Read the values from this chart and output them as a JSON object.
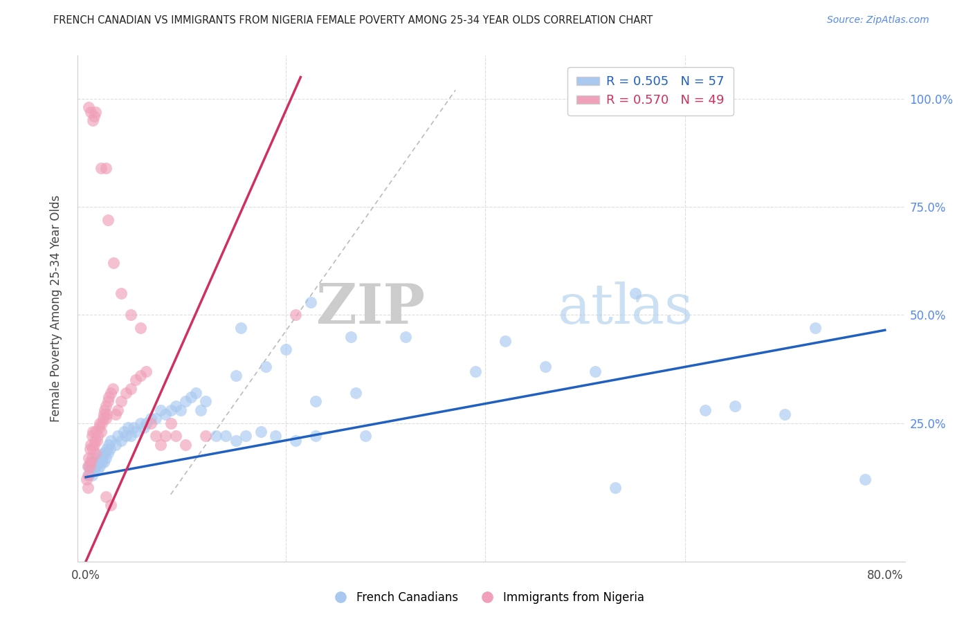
{
  "title": "FRENCH CANADIAN VS IMMIGRANTS FROM NIGERIA FEMALE POVERTY AMONG 25-34 YEAR OLDS CORRELATION CHART",
  "source": "Source: ZipAtlas.com",
  "ylabel": "Female Poverty Among 25-34 Year Olds",
  "xlim": [
    -0.008,
    0.82
  ],
  "ylim": [
    -0.07,
    1.1
  ],
  "xtick_positions": [
    0.0,
    0.2,
    0.4,
    0.6,
    0.8
  ],
  "xtick_labels": [
    "0.0%",
    "",
    "",
    "",
    "80.0%"
  ],
  "ytick_positions": [
    0.0,
    0.25,
    0.5,
    0.75,
    1.0
  ],
  "ytick_labels_right": [
    "",
    "25.0%",
    "50.0%",
    "75.0%",
    "100.0%"
  ],
  "blue_color": "#A8C8F0",
  "pink_color": "#F0A0B8",
  "blue_line_color": "#2060C0",
  "pink_line_color": "#D03060",
  "gray_line_color": "#BBBBBB",
  "legend_blue_R": "R = 0.505",
  "legend_blue_N": "N = 57",
  "legend_pink_R": "R = 0.570",
  "legend_pink_N": "N = 49",
  "blue_line_x": [
    0.0,
    0.8
  ],
  "blue_line_y": [
    0.125,
    0.465
  ],
  "pink_line_x": [
    0.0,
    0.215
  ],
  "pink_line_y": [
    -0.07,
    1.05
  ],
  "gray_line_x": [
    0.085,
    0.37
  ],
  "gray_line_y": [
    0.085,
    1.02
  ],
  "blue_x": [
    0.002,
    0.003,
    0.004,
    0.005,
    0.006,
    0.007,
    0.008,
    0.009,
    0.01,
    0.011,
    0.012,
    0.013,
    0.014,
    0.015,
    0.016,
    0.017,
    0.018,
    0.019,
    0.02,
    0.021,
    0.022,
    0.023,
    0.024,
    0.025,
    0.03,
    0.032,
    0.035,
    0.038,
    0.04,
    0.042,
    0.045,
    0.048,
    0.05,
    0.055,
    0.058,
    0.06,
    0.065,
    0.07,
    0.075,
    0.08,
    0.085,
    0.09,
    0.095,
    0.1,
    0.105,
    0.11,
    0.115,
    0.12,
    0.13,
    0.14,
    0.15,
    0.16,
    0.175,
    0.19,
    0.21,
    0.23,
    0.28
  ],
  "blue_y": [
    0.13,
    0.15,
    0.14,
    0.16,
    0.13,
    0.15,
    0.14,
    0.16,
    0.15,
    0.17,
    0.14,
    0.16,
    0.15,
    0.17,
    0.16,
    0.18,
    0.16,
    0.18,
    0.17,
    0.19,
    0.18,
    0.2,
    0.19,
    0.21,
    0.2,
    0.22,
    0.21,
    0.23,
    0.22,
    0.24,
    0.22,
    0.24,
    0.23,
    0.25,
    0.24,
    0.25,
    0.26,
    0.26,
    0.28,
    0.27,
    0.28,
    0.29,
    0.28,
    0.3,
    0.31,
    0.32,
    0.28,
    0.3,
    0.22,
    0.22,
    0.21,
    0.22,
    0.23,
    0.22,
    0.21,
    0.22,
    0.22
  ],
  "blue_x_outliers": [
    0.155,
    0.225,
    0.265,
    0.32,
    0.39,
    0.42,
    0.46,
    0.51,
    0.55,
    0.62,
    0.65,
    0.7,
    0.73,
    0.78,
    0.53,
    0.2,
    0.15,
    0.18,
    0.23,
    0.27
  ],
  "blue_y_outliers": [
    0.47,
    0.53,
    0.45,
    0.45,
    0.37,
    0.44,
    0.38,
    0.37,
    0.55,
    0.28,
    0.29,
    0.27,
    0.47,
    0.12,
    0.1,
    0.42,
    0.36,
    0.38,
    0.3,
    0.32
  ],
  "pink_x": [
    0.001,
    0.002,
    0.002,
    0.003,
    0.003,
    0.004,
    0.004,
    0.005,
    0.005,
    0.006,
    0.006,
    0.007,
    0.007,
    0.008,
    0.009,
    0.01,
    0.01,
    0.011,
    0.012,
    0.013,
    0.014,
    0.015,
    0.016,
    0.017,
    0.018,
    0.019,
    0.02,
    0.02,
    0.021,
    0.022,
    0.023,
    0.025,
    0.027,
    0.03,
    0.032,
    0.035,
    0.04,
    0.045,
    0.05,
    0.055,
    0.06,
    0.065,
    0.07,
    0.075,
    0.08,
    0.085,
    0.09,
    0.1,
    0.12
  ],
  "pink_y": [
    0.12,
    0.1,
    0.15,
    0.13,
    0.17,
    0.15,
    0.19,
    0.16,
    0.2,
    0.17,
    0.22,
    0.19,
    0.23,
    0.2,
    0.21,
    0.18,
    0.23,
    0.21,
    0.22,
    0.24,
    0.25,
    0.23,
    0.25,
    0.26,
    0.27,
    0.28,
    0.26,
    0.29,
    0.27,
    0.3,
    0.31,
    0.32,
    0.33,
    0.27,
    0.28,
    0.3,
    0.32,
    0.33,
    0.35,
    0.36,
    0.37,
    0.25,
    0.22,
    0.2,
    0.22,
    0.25,
    0.22,
    0.2,
    0.22
  ],
  "pink_x_outliers": [
    0.01,
    0.015,
    0.02,
    0.022,
    0.028,
    0.035,
    0.045,
    0.055,
    0.02,
    0.025,
    0.003,
    0.005,
    0.007,
    0.008,
    0.21
  ],
  "pink_y_outliers": [
    0.97,
    0.84,
    0.84,
    0.72,
    0.62,
    0.55,
    0.5,
    0.47,
    0.08,
    0.06,
    0.98,
    0.97,
    0.95,
    0.96,
    0.5
  ],
  "watermark_zip": "ZIP",
  "watermark_atlas": "atlas",
  "background_color": "#FFFFFF",
  "grid_color": "#DDDDDD"
}
